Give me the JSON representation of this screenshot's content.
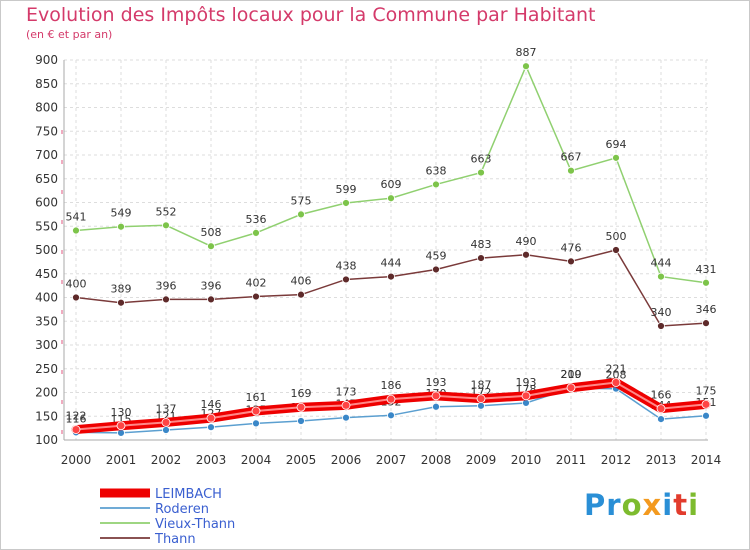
{
  "header": {
    "title": "Evolution des Impôts locaux pour la Commune par Habitant",
    "subtitle": "(en € et par an)"
  },
  "logo": {
    "text": "Proxiti",
    "letters": [
      {
        "ch": "P",
        "color": "#2a8fd6"
      },
      {
        "ch": "r",
        "color": "#2a8fd6"
      },
      {
        "ch": "o",
        "color": "#7dbb2e"
      },
      {
        "ch": "x",
        "color": "#f39a1f"
      },
      {
        "ch": "i",
        "color": "#2a8fd6"
      },
      {
        "ch": "t",
        "color": "#e23c2d"
      },
      {
        "ch": "i",
        "color": "#7dbb2e"
      }
    ]
  },
  "chart_data": {
    "type": "line",
    "title": "Evolution des Impôts locaux pour la Commune par Habitant",
    "subtitle": "(en € et par an)",
    "xlabel": "",
    "ylabel": "",
    "ylim": [
      100,
      900
    ],
    "yticks": [
      100,
      150,
      200,
      250,
      300,
      350,
      400,
      450,
      500,
      550,
      600,
      650,
      700,
      750,
      800,
      850,
      900
    ],
    "grid": true,
    "legend_position": "bottom-left",
    "x": [
      "2000",
      "2001",
      "2002",
      "2003",
      "2004",
      "2005",
      "2006",
      "2007",
      "2008",
      "2009",
      "2010",
      "2011",
      "2012",
      "2013",
      "2014"
    ],
    "series": [
      {
        "name": "Vieux-Thann",
        "color": "#90d070",
        "marker": "#7dc44a",
        "values": [
          541,
          549,
          552,
          508,
          536,
          575,
          599,
          609,
          638,
          663,
          887,
          667,
          694,
          444,
          431
        ],
        "labels": [
          "541",
          "549",
          "552",
          "508",
          "536",
          "575",
          "599",
          "609",
          "638",
          "663",
          "887",
          "667",
          "694",
          "444",
          "431"
        ]
      },
      {
        "name": "Thann",
        "color": "#7a3a3a",
        "marker": "#5e2a2a",
        "values": [
          400,
          389,
          396,
          396,
          402,
          406,
          438,
          444,
          459,
          483,
          490,
          476,
          500,
          340,
          346
        ],
        "labels": [
          "400",
          "389",
          "396",
          "396",
          "402",
          "406",
          "438",
          "444",
          "459",
          "483",
          "490",
          "476",
          "500",
          "340",
          "346"
        ]
      },
      {
        "name": "Roderen",
        "color": "#5b9fd0",
        "marker": "#3a87c8",
        "values": [
          116,
          115,
          121,
          127,
          135,
          140,
          147,
          152,
          170,
          172,
          178,
          209,
          208,
          144,
          151
        ],
        "labels": [
          "116",
          "115",
          "121",
          "127",
          "135",
          "140",
          "147",
          "152",
          "170",
          "172",
          "178",
          "209",
          "208",
          "144",
          "151"
        ]
      },
      {
        "name": "LEIMBACH",
        "color": "#ee0000",
        "marker": "#ff4444",
        "values": [
          122,
          130,
          137,
          146,
          161,
          169,
          173,
          186,
          193,
          187,
          193,
          210,
          221,
          166,
          175
        ],
        "labels": [
          "122",
          "130",
          "137",
          "146",
          "161",
          "169",
          "173",
          "186",
          "193",
          "187",
          "193",
          "210",
          "221",
          "166",
          "175"
        ]
      }
    ],
    "legend": [
      {
        "name": "LEIMBACH",
        "color": "#ee0000",
        "text_color": "#3a5fd0",
        "thick": true
      },
      {
        "name": "Roderen",
        "color": "#5b9fd0",
        "text_color": "#3a5fd0",
        "thick": false
      },
      {
        "name": "Vieux-Thann",
        "color": "#90d070",
        "text_color": "#3a5fd0",
        "thick": false
      },
      {
        "name": "Thann",
        "color": "#7a3a3a",
        "text_color": "#3a5fd0",
        "thick": false
      }
    ]
  }
}
